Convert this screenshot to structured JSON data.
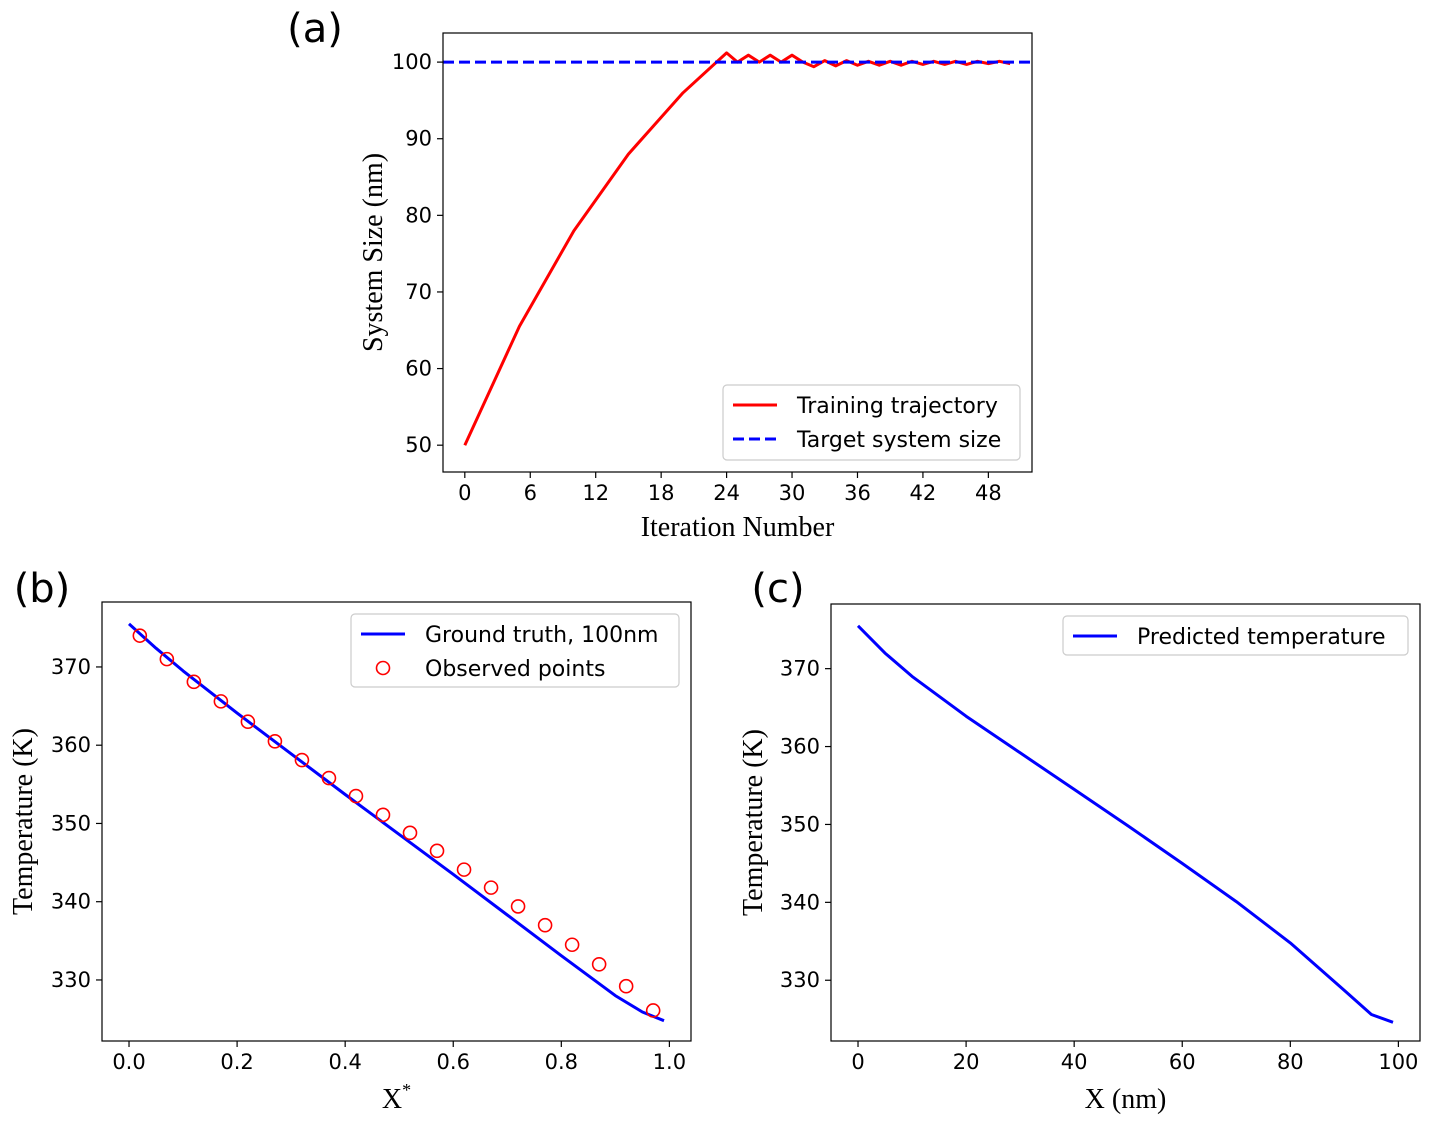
{
  "chart_data": [
    {
      "type": "line",
      "panel": "(a)",
      "xlabel": "Iteration Number",
      "ylabel": "System Size (nm)",
      "xlim": [
        -2,
        52
      ],
      "ylim": [
        46.5,
        103.8
      ],
      "xticks": [
        0,
        6,
        12,
        18,
        24,
        30,
        36,
        42,
        48
      ],
      "yticks": [
        50,
        60,
        70,
        80,
        90,
        100
      ],
      "legend": "lower-right",
      "series": [
        {
          "name": "Training trajectory",
          "style": "solid",
          "color": "#ff0000",
          "x": [
            0,
            5,
            10,
            15,
            20,
            24,
            25,
            26,
            27,
            28,
            29,
            30,
            31,
            32,
            33,
            34,
            35,
            36,
            37,
            38,
            39,
            40,
            41,
            42,
            43,
            44,
            45,
            46,
            47,
            48,
            49,
            50
          ],
          "y": [
            50,
            65.5,
            78,
            88,
            96,
            101.2,
            100,
            100.9,
            100,
            100.9,
            100,
            100.9,
            100,
            99.4,
            100.2,
            99.5,
            100.2,
            99.6,
            100.1,
            99.6,
            100.1,
            99.6,
            100.1,
            99.7,
            100.1,
            99.7,
            100.1,
            99.7,
            100.1,
            99.8,
            100.1,
            99.8
          ]
        },
        {
          "name": "Target system size",
          "style": "dashed",
          "color": "#0000ff",
          "x": [
            -2,
            52
          ],
          "y": [
            100,
            100
          ]
        }
      ]
    },
    {
      "type": "line",
      "panel": "(b)",
      "xlabel": "X*",
      "ylabel": "Temperature (K)",
      "xlim": [
        -0.05,
        1.04
      ],
      "ylim": [
        322.2,
        378.3
      ],
      "xticks": [
        0.0,
        0.2,
        0.4,
        0.6,
        0.8,
        1.0
      ],
      "xtick_labels": [
        "0.0",
        "0.2",
        "0.4",
        "0.6",
        "0.8",
        "1.0"
      ],
      "yticks": [
        330,
        340,
        350,
        360,
        370
      ],
      "legend": "top-right",
      "series": [
        {
          "name": "Ground truth, 100nm",
          "style": "solid",
          "color": "#0000ff",
          "x": [
            0.0,
            0.05,
            0.1,
            0.2,
            0.3,
            0.4,
            0.5,
            0.6,
            0.7,
            0.8,
            0.9,
            0.95,
            0.99
          ],
          "y": [
            375.5,
            372.4,
            369.5,
            364.1,
            358.9,
            353.7,
            348.6,
            343.5,
            338.3,
            333.1,
            328.0,
            325.9,
            324.8
          ]
        },
        {
          "name": "Observed points",
          "style": "markers",
          "color": "#ff0000",
          "x": [
            0.02,
            0.07,
            0.12,
            0.17,
            0.22,
            0.27,
            0.32,
            0.37,
            0.42,
            0.47,
            0.52,
            0.57,
            0.62,
            0.67,
            0.72,
            0.77,
            0.82,
            0.87,
            0.92,
            0.97
          ],
          "y": [
            374.0,
            371.0,
            368.1,
            365.6,
            363.0,
            360.5,
            358.1,
            355.8,
            353.5,
            351.1,
            348.8,
            346.5,
            344.1,
            341.8,
            339.4,
            337.0,
            334.5,
            332.0,
            329.2,
            326.1
          ]
        }
      ]
    },
    {
      "type": "line",
      "panel": "(c)",
      "xlabel": "X (nm)",
      "ylabel": "Temperature (K)",
      "xlim": [
        -5,
        104
      ],
      "ylim": [
        322.2,
        378.3
      ],
      "xticks": [
        0,
        20,
        40,
        60,
        80,
        100
      ],
      "yticks": [
        330,
        340,
        350,
        360,
        370
      ],
      "legend": "top-right",
      "series": [
        {
          "name": "Predicted temperature",
          "style": "solid",
          "color": "#0000ff",
          "x": [
            0,
            5,
            10,
            20,
            30,
            40,
            50,
            60,
            70,
            80,
            90,
            95,
            99
          ],
          "y": [
            375.5,
            372.0,
            369.0,
            363.9,
            359.2,
            354.5,
            349.8,
            345.0,
            340.1,
            334.8,
            328.7,
            325.6,
            324.6
          ]
        }
      ]
    }
  ]
}
